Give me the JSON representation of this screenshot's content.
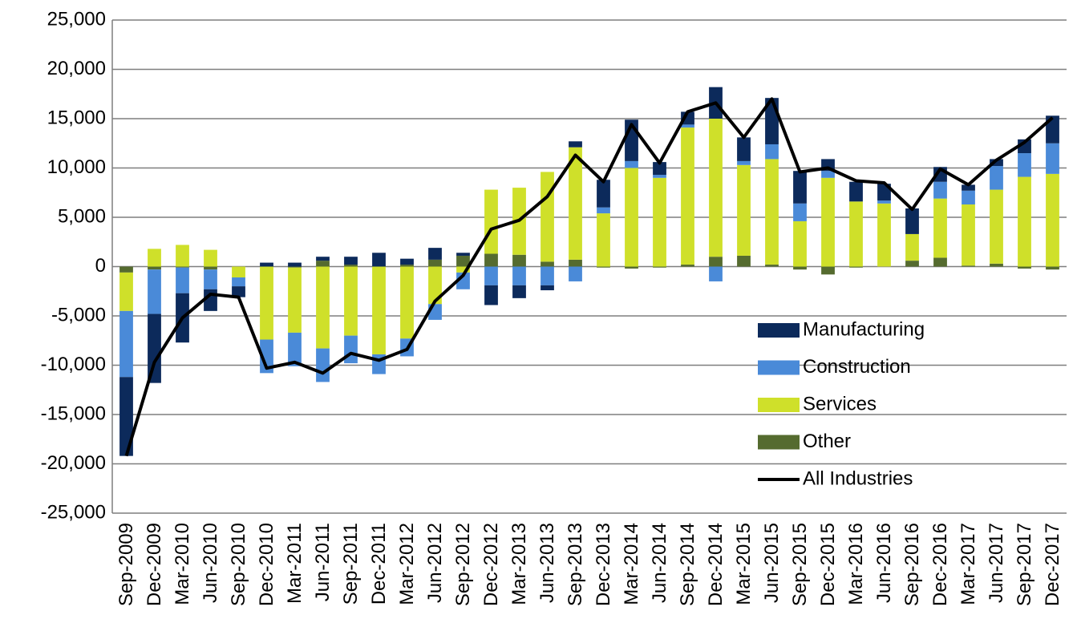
{
  "chart_data": {
    "type": "bar",
    "stacked": true,
    "categories": [
      "Sep-2009",
      "Dec-2009",
      "Mar-2010",
      "Jun-2010",
      "Sep-2010",
      "Dec-2010",
      "Mar-2011",
      "Jun-2011",
      "Sep-2011",
      "Dec-2011",
      "Mar-2012",
      "Jun-2012",
      "Sep-2012",
      "Dec-2012",
      "Mar-2013",
      "Jun-2013",
      "Sep-2013",
      "Dec-2013",
      "Mar-2014",
      "Jun-2014",
      "Sep-2014",
      "Dec-2014",
      "Mar-2015",
      "Jun-2015",
      "Sep-2015",
      "Dec-2015",
      "Mar-2016",
      "Jun-2016",
      "Sep-2016",
      "Dec-2016",
      "Mar-2017",
      "Jun-2017",
      "Sep-2017",
      "Dec-2017"
    ],
    "series": [
      {
        "name": "Manufacturing",
        "color": "#0c2a5b",
        "values": [
          -8000,
          -7000,
          -5000,
          -2200,
          -1100,
          400,
          400,
          400,
          800,
          1400,
          600,
          1200,
          300,
          -2000,
          -1300,
          -500,
          600,
          2800,
          4200,
          1300,
          1300,
          3200,
          2400,
          4700,
          3300,
          1200,
          2000,
          1700,
          2600,
          1500,
          600,
          700,
          1400,
          2800
        ]
      },
      {
        "name": "Construction",
        "color": "#4a8ad8",
        "values": [
          -6700,
          -4500,
          -2600,
          -2000,
          -900,
          -3400,
          -3400,
          -3400,
          -2800,
          -2000,
          -1800,
          -1600,
          -1700,
          -1900,
          -1900,
          -1900,
          -1500,
          600,
          700,
          300,
          300,
          -1500,
          400,
          1500,
          1800,
          700,
          0,
          300,
          0,
          1700,
          1400,
          2400,
          2400,
          3100
        ]
      },
      {
        "name": "Services",
        "color": "#cfe02a",
        "values": [
          -3900,
          1800,
          2200,
          1700,
          -1100,
          -7400,
          -6600,
          -8300,
          -7000,
          -8900,
          -7300,
          -3800,
          -600,
          6500,
          6800,
          9100,
          11400,
          5400,
          10000,
          9000,
          13900,
          14000,
          9200,
          10700,
          4600,
          9000,
          6600,
          6400,
          2700,
          6000,
          6200,
          7500,
          9100,
          9400
        ]
      },
      {
        "name": "Other",
        "color": "#556b2f",
        "values": [
          -600,
          -300,
          -100,
          -300,
          0,
          0,
          -100,
          600,
          200,
          0,
          200,
          700,
          1100,
          1300,
          1200,
          500,
          700,
          -100,
          -200,
          -100,
          200,
          1000,
          1100,
          200,
          -300,
          -800,
          -100,
          0,
          600,
          900,
          100,
          300,
          -200,
          -300
        ]
      },
      {
        "name": "All Industries",
        "type": "line",
        "color": "#000000",
        "values": [
          -19200,
          -9700,
          -5200,
          -2800,
          -3100,
          -10300,
          -9700,
          -10800,
          -8800,
          -9500,
          -8400,
          -3500,
          -900,
          3800,
          4700,
          7100,
          11300,
          8600,
          14400,
          10500,
          15700,
          16600,
          13100,
          17000,
          9600,
          10000,
          8700,
          8500,
          5800,
          9900,
          8300,
          10800,
          12600,
          15100
        ]
      }
    ],
    "ylim": [
      -25000,
      25000
    ],
    "yticks": [
      {
        "value": -25000,
        "label": "-25,000"
      },
      {
        "value": -20000,
        "label": "-20,000"
      },
      {
        "value": -15000,
        "label": "-15,000"
      },
      {
        "value": -10000,
        "label": "-10,000"
      },
      {
        "value": -5000,
        "label": "-5,000"
      },
      0,
      {
        "value": 5000,
        "label": "5,000"
      },
      {
        "value": 10000,
        "label": "10,000"
      },
      {
        "value": 15000,
        "label": "15,000"
      },
      {
        "value": 20000,
        "label": "20,000"
      },
      {
        "value": 25000,
        "label": "25,000"
      }
    ],
    "grid": true
  }
}
